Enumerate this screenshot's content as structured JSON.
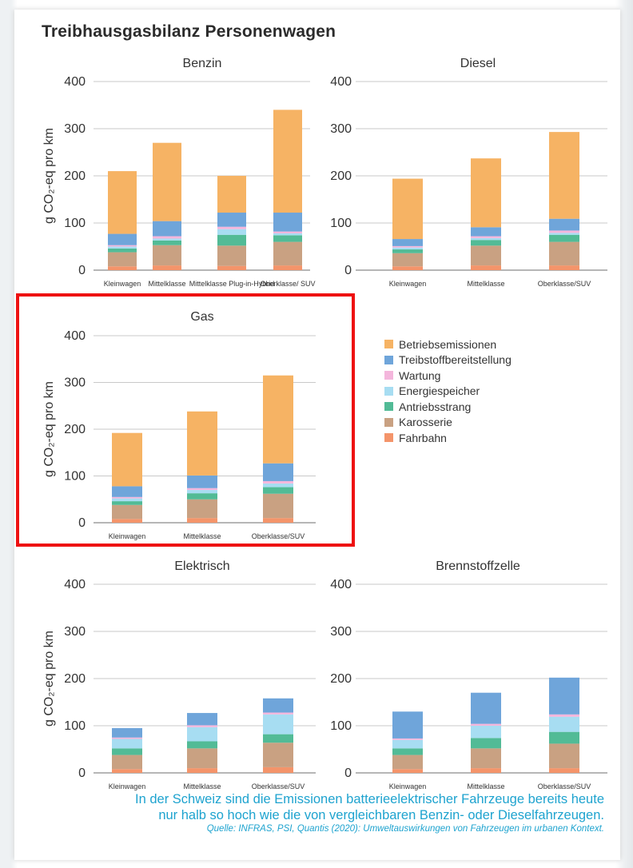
{
  "main_title": "Treibhausgasbilanz Personenwagen",
  "legend": [
    {
      "label": "Betriebsemissionen",
      "color": "#f6b364"
    },
    {
      "label": "Treibstoffbereitstellung",
      "color": "#6fa5da"
    },
    {
      "label": "Wartung",
      "color": "#f4b6dc"
    },
    {
      "label": "Energiespeicher",
      "color": "#a7ddf2"
    },
    {
      "label": "Antriebsstrang",
      "color": "#52bb96"
    },
    {
      "label": "Karosserie",
      "color": "#c9a182"
    },
    {
      "label": "Fahrbahn",
      "color": "#f4946a"
    }
  ],
  "footer": {
    "line1": "In der Schweiz sind die Emissionen batterieelektrischer Fahrzeuge bereits heute",
    "line2": "nur halb so hoch wie die von vergleichbaren Benzin- oder Dieselfahrzeugen.",
    "source": "Quelle: INFRAS, PSI, Quantis (2020): Umweltauswirkungen von Fahrzeugen im urbanen Kontext."
  },
  "chart_data": [
    {
      "type": "bar",
      "stacked": true,
      "title": "Benzin",
      "ylabel": "g CO₂-eq pro km",
      "ylim": [
        0,
        400
      ],
      "yticks": [
        0,
        100,
        200,
        300,
        400
      ],
      "categories": [
        "Kleinwagen",
        "Mittelklasse",
        "Mittelklasse Plug-in-Hybrid",
        "Oberklasse/ SUV"
      ],
      "series": [
        {
          "name": "Fahrbahn",
          "values": [
            8,
            10,
            9,
            10
          ]
        },
        {
          "name": "Karosserie",
          "values": [
            30,
            43,
            43,
            50
          ]
        },
        {
          "name": "Antriebsstrang",
          "values": [
            8,
            10,
            23,
            14
          ]
        },
        {
          "name": "Energiespeicher",
          "values": [
            4,
            4,
            12,
            4
          ]
        },
        {
          "name": "Wartung",
          "values": [
            3,
            5,
            5,
            4
          ]
        },
        {
          "name": "Treibstoffbereitstellung",
          "values": [
            24,
            32,
            30,
            40
          ]
        },
        {
          "name": "Betriebsemissionen",
          "values": [
            133,
            166,
            78,
            218
          ]
        }
      ]
    },
    {
      "type": "bar",
      "stacked": true,
      "title": "Diesel",
      "ylabel": "",
      "ylim": [
        0,
        400
      ],
      "yticks": [
        0,
        100,
        200,
        300,
        400
      ],
      "categories": [
        "Kleinwagen",
        "Mittelklasse",
        "Oberklasse/SUV"
      ],
      "series": [
        {
          "name": "Fahrbahn",
          "values": [
            8,
            10,
            10
          ]
        },
        {
          "name": "Karosserie",
          "values": [
            28,
            42,
            50
          ]
        },
        {
          "name": "Antriebsstrang",
          "values": [
            8,
            12,
            15
          ]
        },
        {
          "name": "Energiespeicher",
          "values": [
            4,
            4,
            4
          ]
        },
        {
          "name": "Wartung",
          "values": [
            3,
            4,
            5
          ]
        },
        {
          "name": "Treibstoffbereitstellung",
          "values": [
            15,
            19,
            25
          ]
        },
        {
          "name": "Betriebsemissionen",
          "values": [
            128,
            146,
            184
          ]
        }
      ]
    },
    {
      "type": "bar",
      "stacked": true,
      "title": "Gas",
      "ylabel": "g CO₂-eq pro km",
      "ylim": [
        0,
        400
      ],
      "yticks": [
        0,
        100,
        200,
        300,
        400
      ],
      "categories": [
        "Kleinwagen",
        "Mittelklasse",
        "Oberklasse/SUV"
      ],
      "series": [
        {
          "name": "Fahrbahn",
          "values": [
            8,
            10,
            10
          ]
        },
        {
          "name": "Karosserie",
          "values": [
            30,
            40,
            52
          ]
        },
        {
          "name": "Antriebsstrang",
          "values": [
            8,
            13,
            14
          ]
        },
        {
          "name": "Energiespeicher",
          "values": [
            6,
            7,
            8
          ]
        },
        {
          "name": "Wartung",
          "values": [
            3,
            4,
            5
          ]
        },
        {
          "name": "Treibstoffbereitstellung",
          "values": [
            23,
            27,
            38
          ]
        },
        {
          "name": "Betriebsemissionen",
          "values": [
            114,
            137,
            188
          ]
        }
      ]
    },
    {
      "type": "bar",
      "stacked": true,
      "title": "Elektrisch",
      "ylabel": "g CO₂-eq pro km",
      "ylim": [
        0,
        400
      ],
      "yticks": [
        0,
        100,
        200,
        300,
        400
      ],
      "categories": [
        "Kleinwagen",
        "Mittelklasse",
        "Oberklasse/SUV"
      ],
      "series": [
        {
          "name": "Fahrbahn",
          "values": [
            8,
            10,
            12
          ]
        },
        {
          "name": "Karosserie",
          "values": [
            30,
            42,
            52
          ]
        },
        {
          "name": "Antriebsstrang",
          "values": [
            14,
            15,
            18
          ]
        },
        {
          "name": "Energiespeicher",
          "values": [
            20,
            30,
            42
          ]
        },
        {
          "name": "Wartung",
          "values": [
            3,
            4,
            4
          ]
        },
        {
          "name": "Treibstoffbereitstellung",
          "values": [
            20,
            26,
            30
          ]
        },
        {
          "name": "Betriebsemissionen",
          "values": [
            0,
            0,
            0
          ]
        }
      ]
    },
    {
      "type": "bar",
      "stacked": true,
      "title": "Brennstoffzelle",
      "ylabel": "",
      "ylim": [
        0,
        400
      ],
      "yticks": [
        0,
        100,
        200,
        300,
        400
      ],
      "categories": [
        "Kleinwagen",
        "Mittelklasse",
        "Oberklasse/SUV"
      ],
      "series": [
        {
          "name": "Fahrbahn",
          "values": [
            8,
            10,
            10
          ]
        },
        {
          "name": "Karosserie",
          "values": [
            30,
            42,
            52
          ]
        },
        {
          "name": "Antriebsstrang",
          "values": [
            14,
            22,
            25
          ]
        },
        {
          "name": "Energiespeicher",
          "values": [
            18,
            26,
            32
          ]
        },
        {
          "name": "Wartung",
          "values": [
            3,
            4,
            5
          ]
        },
        {
          "name": "Treibstoffbereitstellung",
          "values": [
            57,
            66,
            78
          ]
        },
        {
          "name": "Betriebsemissionen",
          "values": [
            0,
            0,
            0
          ]
        }
      ]
    }
  ]
}
